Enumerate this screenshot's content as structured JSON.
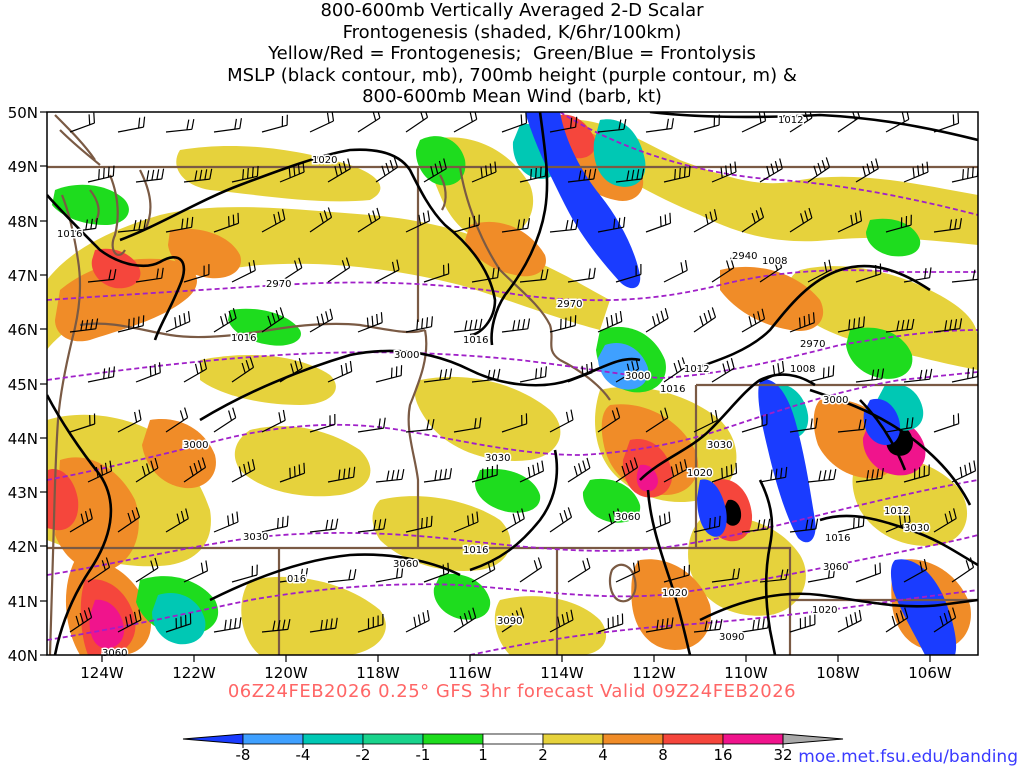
{
  "title_lines": [
    "800-600mb Vertically Averaged 2-D Scalar",
    "Frontogenesis (shaded, K/6hr/100km)",
    "Yellow/Red = Frontogenesis;  Green/Blue = Frontolysis",
    "MSLP (black contour, mb), 700mb height (purple contour, m) &",
    "800-600mb Mean Wind (barb, kt)"
  ],
  "subtitle": "06Z24FEB2026 0.25° GFS 3hr forecast Valid 09Z24FEB2026",
  "credit": "moe.met.fsu.edu/banding",
  "lat_labels": [
    "50N",
    "49N",
    "48N",
    "47N",
    "46N",
    "45N",
    "44N",
    "43N",
    "42N",
    "41N",
    "40N"
  ],
  "lon_labels": [
    "124W",
    "122W",
    "120W",
    "118W",
    "116W",
    "114W",
    "112W",
    "110W",
    "108W",
    "106W"
  ],
  "colorbar": {
    "labels": [
      "-8",
      "-4",
      "-2",
      "-1",
      "1",
      "2",
      "4",
      "8",
      "16",
      "32"
    ],
    "colors": [
      "#1a3cff",
      "#3fa0ff",
      "#00c8b4",
      "#19d38c",
      "#1edc1e",
      "#ffffff",
      "#e6d23c",
      "#f08c28",
      "#f5463c",
      "#f0148c",
      "#000000",
      "#aaaaaa"
    ]
  },
  "mslp_labels": [
    "1012",
    "1020",
    "1016",
    "1016",
    "1016",
    "1008",
    "1012",
    "1016",
    "1020",
    "1012",
    "1016",
    "1016",
    "1020",
    "1020",
    "016",
    "1008"
  ],
  "height_labels": [
    "2940",
    "2970",
    "2970",
    "2970",
    "3000",
    "3000",
    "3000",
    "3000",
    "3030",
    "3030",
    "3030",
    "3030",
    "3060",
    "3060",
    "3060",
    "3090",
    "3090",
    "3060"
  ]
}
